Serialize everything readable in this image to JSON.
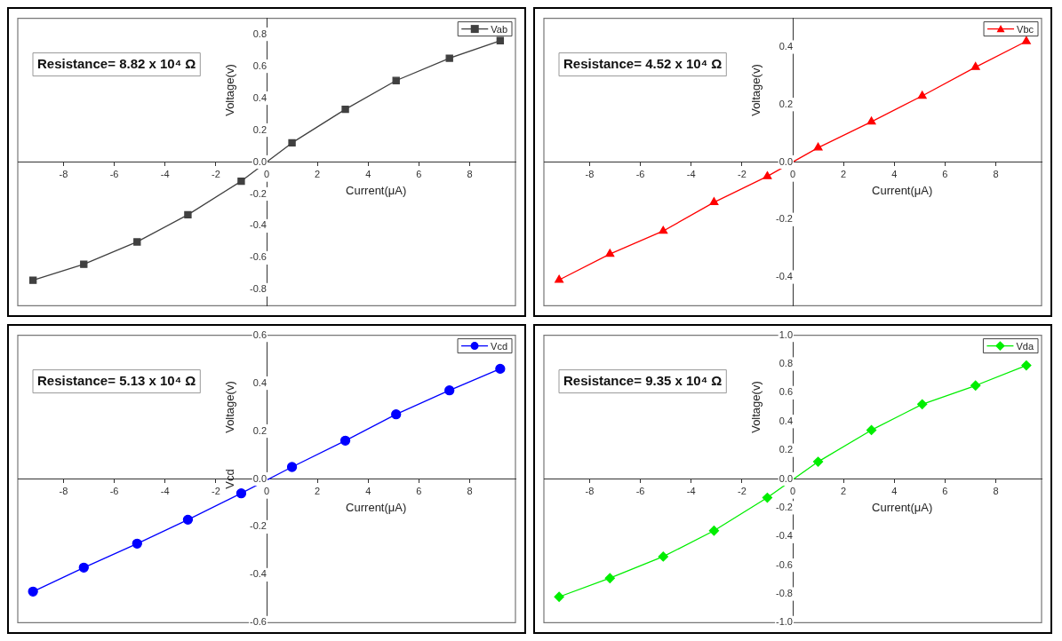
{
  "chart_data": [
    {
      "type": "line",
      "xlabel": "Current(μA)",
      "ylabel": "Voltage(v)",
      "annotations": [
        "Resistance= 8.82 x 10⁴ Ω"
      ],
      "legend": "top right",
      "marker": "square",
      "xlim": [
        -9.8,
        9.8
      ],
      "xticks": [
        -8,
        -6,
        -4,
        -2,
        0,
        2,
        4,
        6,
        8
      ],
      "ylim": [
        -0.9,
        0.9
      ],
      "yticks": [
        -0.8,
        -0.6,
        -0.4,
        -0.2,
        {
          "value": 0,
          "label": "0.0"
        },
        0.2,
        0.4,
        0.6,
        0.8
      ],
      "x": [
        -9.2,
        -7.2,
        -5.1,
        -3.1,
        -1.0,
        1.0,
        3.1,
        5.1,
        7.2,
        9.2
      ],
      "series": [
        {
          "name": "Vab",
          "color": "#404040",
          "values": [
            -0.74,
            -0.64,
            -0.5,
            -0.33,
            -0.12,
            0.12,
            0.33,
            0.51,
            0.65,
            0.76
          ]
        }
      ]
    },
    {
      "type": "line",
      "xlabel": "Current(μA)",
      "ylabel": "Voltage(v)",
      "annotations": [
        "Resistance= 4.52 x 10⁴ Ω"
      ],
      "legend": "top right",
      "marker": "triangle",
      "xlim": [
        -9.8,
        9.8
      ],
      "xticks": [
        -8,
        -6,
        -4,
        -2,
        0,
        2,
        4,
        6,
        8
      ],
      "ylim": [
        -0.5,
        0.5
      ],
      "yticks": [
        -0.4,
        -0.2,
        {
          "value": 0,
          "label": "0.0"
        },
        0.2,
        0.4
      ],
      "x": [
        -9.2,
        -7.2,
        -5.1,
        -3.1,
        -1.0,
        1.0,
        3.1,
        5.1,
        7.2,
        9.2
      ],
      "series": [
        {
          "name": "Vbc",
          "color": "#ff0000",
          "values": [
            -0.41,
            -0.32,
            -0.24,
            -0.14,
            -0.05,
            0.05,
            0.14,
            0.23,
            0.33,
            0.42
          ]
        }
      ]
    },
    {
      "type": "line",
      "xlabel": "Current(μA)",
      "ylabel": "Voltage(v)",
      "annotations": [
        "Resistance= 5.13 x 10⁴ Ω",
        "Vcd"
      ],
      "legend": "top right",
      "marker": "circle",
      "xlim": [
        -9.8,
        9.8
      ],
      "xticks": [
        -8,
        -6,
        -4,
        -2,
        0,
        2,
        4,
        6,
        8
      ],
      "ylim": [
        -0.6,
        0.6
      ],
      "yticks": [
        -0.6,
        -0.4,
        -0.2,
        {
          "value": 0,
          "label": "0.0"
        },
        0.2,
        0.4,
        0.6
      ],
      "x": [
        -9.2,
        -7.2,
        -5.1,
        -3.1,
        -1.0,
        1.0,
        3.1,
        5.1,
        7.2,
        9.2
      ],
      "series": [
        {
          "name": "Vcd",
          "color": "#0000ff",
          "values": [
            -0.47,
            -0.37,
            -0.27,
            -0.17,
            -0.06,
            0.05,
            0.16,
            0.27,
            0.37,
            0.46
          ]
        }
      ]
    },
    {
      "type": "line",
      "xlabel": "Current(μA)",
      "ylabel": "Voltage(v)",
      "annotations": [
        "Resistance= 9.35 x 10⁴ Ω"
      ],
      "legend": "top right",
      "marker": "diamond",
      "xlim": [
        -9.8,
        9.8
      ],
      "xticks": [
        -8,
        -6,
        -4,
        -2,
        0,
        2,
        4,
        6,
        8
      ],
      "ylim": [
        -1.0,
        1.0
      ],
      "yticks": [
        {
          "value": -1,
          "label": "-1.0"
        },
        -0.8,
        -0.6,
        -0.4,
        -0.2,
        {
          "value": 0,
          "label": "0.0"
        },
        0.2,
        0.4,
        0.6,
        0.8,
        {
          "value": 1,
          "label": "1.0"
        }
      ],
      "x": [
        -9.2,
        -7.2,
        -5.1,
        -3.1,
        -1.0,
        1.0,
        3.1,
        5.1,
        7.2,
        9.2
      ],
      "series": [
        {
          "name": "Vda",
          "color": "#00ee00",
          "values": [
            -0.82,
            -0.69,
            -0.54,
            -0.36,
            -0.13,
            0.12,
            0.34,
            0.52,
            0.65,
            0.79
          ]
        }
      ]
    }
  ]
}
